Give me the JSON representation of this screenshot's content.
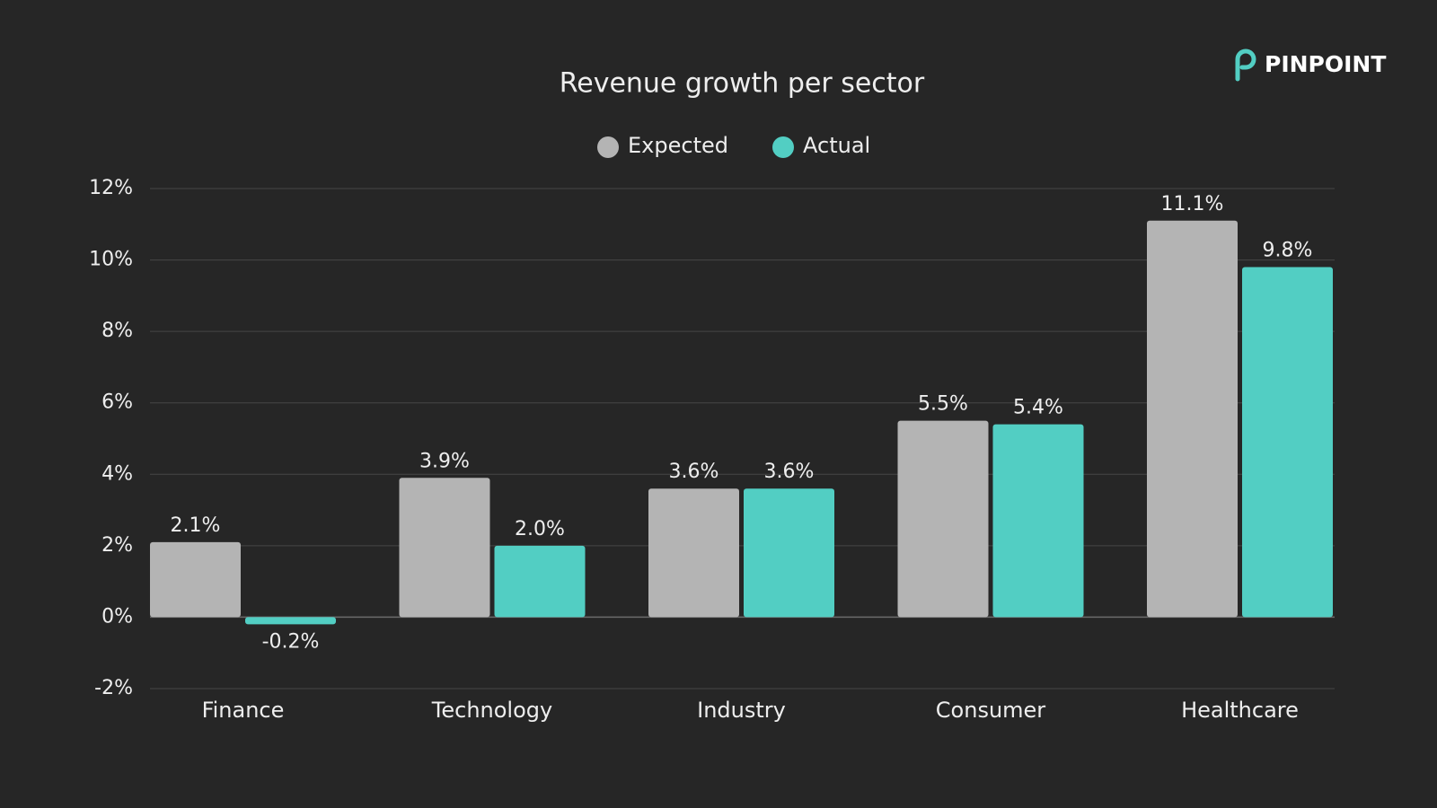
{
  "brand": "PINPOINT",
  "chart_data": {
    "type": "bar",
    "title": "Revenue growth per sector",
    "categories": [
      "Finance",
      "Technology",
      "Industry",
      "Consumer",
      "Healthcare"
    ],
    "series": [
      {
        "name": "Expected",
        "color": "#b4b4b4",
        "values": [
          2.1,
          3.9,
          3.6,
          5.5,
          11.1
        ],
        "value_labels": [
          "2.1%",
          "3.9%",
          "3.6%",
          "5.5%",
          "11.1%"
        ]
      },
      {
        "name": "Actual",
        "color": "#52cec3",
        "values": [
          -0.2,
          2.0,
          3.6,
          5.4,
          9.8
        ],
        "value_labels": [
          "-0.2%",
          "2.0%",
          "3.6%",
          "5.4%",
          "9.8%"
        ]
      }
    ],
    "ylim": [
      -2,
      12
    ],
    "yticks": [
      {
        "value": -2,
        "label": "-2%"
      },
      {
        "value": 0,
        "label": "0%"
      },
      {
        "value": 2,
        "label": "2%"
      },
      {
        "value": 4,
        "label": "4%"
      },
      {
        "value": 6,
        "label": "6%"
      },
      {
        "value": 8,
        "label": "8%"
      },
      {
        "value": 10,
        "label": "10%"
      },
      {
        "value": 12,
        "label": "12%"
      }
    ],
    "grid": true
  }
}
